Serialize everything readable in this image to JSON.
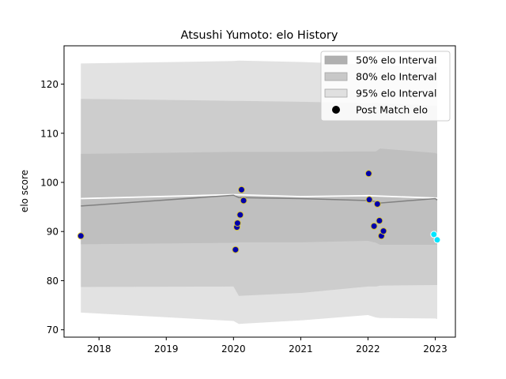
{
  "chart_data": {
    "type": "line",
    "title": "Atsushi Yumoto: elo History",
    "xlabel": "",
    "ylabel": "elo score",
    "xlim": [
      2017.48,
      2023.3
    ],
    "ylim": [
      68.5,
      127.8
    ],
    "xticks": [
      2018,
      2019,
      2020,
      2021,
      2022,
      2023
    ],
    "xtick_labels": [
      "2018",
      "2019",
      "2020",
      "2021",
      "2022",
      "2023"
    ],
    "yticks": [
      70,
      80,
      90,
      100,
      110,
      120
    ],
    "ytick_labels": [
      "70",
      "80",
      "90",
      "100",
      "110",
      "120"
    ],
    "legend": {
      "position": "top-right",
      "entries": [
        {
          "label": "50% elo Interval",
          "kind": "patch",
          "color": "#b0b0b0"
        },
        {
          "label": "80% elo Interval",
          "kind": "patch",
          "color": "#c8c8c8"
        },
        {
          "label": "95% elo Interval",
          "kind": "patch",
          "color": "#e0e0e0"
        },
        {
          "label": "Post Match elo",
          "kind": "marker",
          "color": "#000000"
        }
      ]
    },
    "bands": {
      "x": [
        2017.73,
        2020.0,
        2020.08,
        2021.0,
        2022.0,
        2022.12,
        2022.18,
        2023.0,
        2023.03
      ],
      "band95": {
        "upper": [
          124.2,
          124.7,
          124.8,
          124.5,
          124.0,
          123.9,
          123.8,
          123.5,
          123.4
        ],
        "lower": [
          73.5,
          71.8,
          71.2,
          71.9,
          73.0,
          72.5,
          72.4,
          72.3,
          72.2
        ]
      },
      "band80": {
        "upper": [
          117.0,
          116.6,
          116.6,
          116.4,
          116.1,
          116.2,
          116.1,
          115.6,
          115.5
        ],
        "lower": [
          78.7,
          78.8,
          76.9,
          77.5,
          78.8,
          78.8,
          79.0,
          79.1,
          79.1
        ]
      },
      "band50": {
        "upper": [
          105.8,
          106.2,
          106.2,
          106.2,
          106.3,
          106.3,
          106.9,
          106.0,
          105.8
        ],
        "lower": [
          87.4,
          87.7,
          87.8,
          87.8,
          88.1,
          87.7,
          87.3,
          87.3,
          87.3
        ]
      }
    },
    "mean_line": {
      "x": [
        2017.73,
        2020.0,
        2020.08,
        2021.0,
        2022.0,
        2022.12,
        2022.18,
        2023.0,
        2023.03
      ],
      "y": [
        95.2,
        97.4,
        96.9,
        96.7,
        96.3,
        96.1,
        95.8,
        96.7,
        96.4
      ],
      "color": "#808080"
    },
    "white_line": {
      "x": [
        2017.73,
        2020.0,
        2021.0,
        2022.0,
        2023.03
      ],
      "y": [
        96.7,
        97.5,
        97.1,
        97.3,
        96.8
      ],
      "color": "#ffffff"
    },
    "points": {
      "x": [
        2017.73,
        2020.03,
        2020.05,
        2020.06,
        2020.1,
        2020.12,
        2020.15,
        2022.01,
        2022.02,
        2022.09,
        2022.14,
        2022.17,
        2022.2,
        2022.23
      ],
      "y": [
        89.1,
        86.3,
        90.9,
        91.7,
        93.4,
        98.5,
        96.3,
        101.8,
        96.5,
        91.1,
        95.6,
        92.2,
        89.1,
        90.1
      ],
      "color": "#0000aa",
      "edge_color": "#d4c23a"
    },
    "recent_points": {
      "x": [
        2022.98,
        2023.03
      ],
      "y": [
        89.4,
        88.3
      ],
      "color": "#00e5ff",
      "edge_color": "#ffffff"
    }
  }
}
